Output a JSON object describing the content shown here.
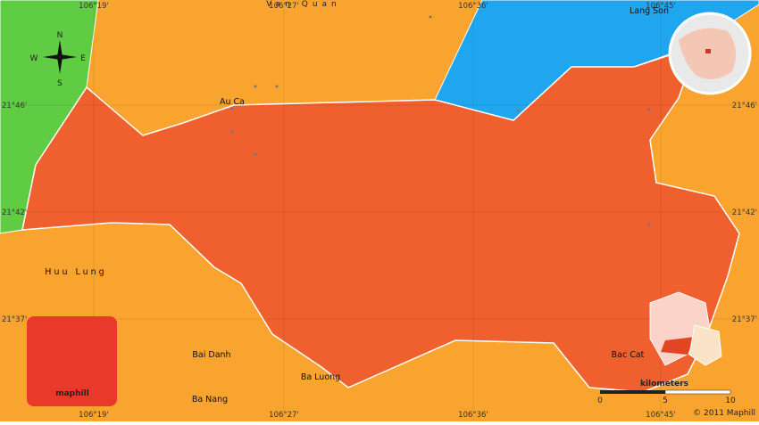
{
  "map": {
    "region_label": "Van Quan",
    "top_ticks": [
      "106°19'",
      "106°27'",
      "106°36'",
      "106°45'"
    ],
    "bottom_ticks": [
      "106°19'",
      "106°27'",
      "106°36'",
      "106°45'"
    ],
    "left_ticks": [
      "21°46'",
      "21°42'",
      "21°37'"
    ],
    "right_ticks": [
      "21°46'",
      "21°42'",
      "21°37'"
    ],
    "places": [
      "Au Ca",
      "Lang Son",
      "Huu Lung",
      "Bai Danh",
      "Ba Luong",
      "Ba Nang",
      "Bac Cat"
    ],
    "compass": [
      "N",
      "S",
      "W",
      "E"
    ],
    "logo": "maphill",
    "scale": {
      "unit": "kilometers",
      "ticks": [
        "0",
        "5",
        "10"
      ]
    },
    "copyright": "© 2011 Maphill"
  }
}
